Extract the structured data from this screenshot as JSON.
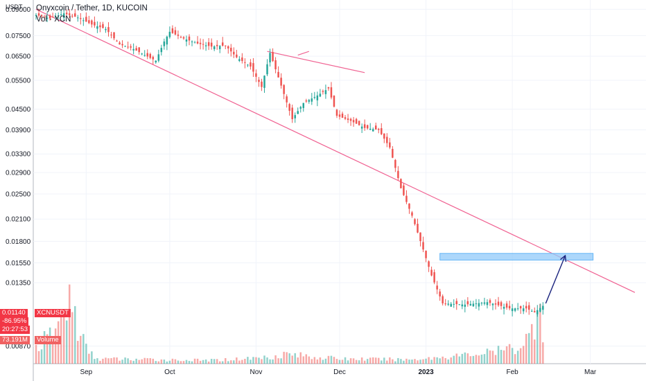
{
  "header": {
    "title": "Onyxcoin / Tether, 1D, KUCOIN",
    "volume_label": "Vol · XCN",
    "unit": "USDT"
  },
  "price_tags": {
    "last_price": "0.01140",
    "symbol": "XCNUSDT",
    "change": "-86.95%",
    "countdown": "20:27:53",
    "volume_value": "73.191M",
    "volume_word": "Volume"
  },
  "colors": {
    "up": "#26a69a",
    "down": "#ef5350",
    "trendline": "#f06292",
    "zone": "#90caf9",
    "arrow": "#1a237e",
    "tag_red": "#f23645"
  },
  "chart_data": {
    "type": "candlestick",
    "title": "Onyxcoin / Tether, 1D, KUCOIN",
    "yscale": "log",
    "ylim": [
      0.0077,
      0.096
    ],
    "y_ticks": [
      "0.09000",
      "0.07500",
      "0.06500",
      "0.05500",
      "0.04500",
      "0.03900",
      "0.03300",
      "0.02900",
      "0.02500",
      "0.02100",
      "0.01800",
      "0.01550",
      "0.01350",
      "0.00870"
    ],
    "x_ticks": [
      "Sep",
      "Oct",
      "Nov",
      "Dec",
      "2023",
      "Feb",
      "Mar"
    ],
    "x_tick_dates": [
      "2022-09-01",
      "2022-10-01",
      "2022-11-01",
      "2022-12-01",
      "2023-01-01",
      "2023-02-01",
      "2023-03-01"
    ],
    "xlim": [
      "2022-08-13",
      "2023-03-21"
    ],
    "anchor_closes": [
      [
        "2022-08-14",
        0.0865
      ],
      [
        "2022-08-19",
        0.0845
      ],
      [
        "2022-08-24",
        0.0875
      ],
      [
        "2022-08-29",
        0.085
      ],
      [
        "2022-09-03",
        0.081
      ],
      [
        "2022-09-08",
        0.0785
      ],
      [
        "2022-09-13",
        0.0705
      ],
      [
        "2022-09-17",
        0.069
      ],
      [
        "2022-09-22",
        0.0655
      ],
      [
        "2022-09-26",
        0.063
      ],
      [
        "2022-09-29",
        0.072
      ],
      [
        "2022-10-01",
        0.077
      ],
      [
        "2022-10-06",
        0.0735
      ],
      [
        "2022-10-11",
        0.071
      ],
      [
        "2022-10-16",
        0.0695
      ],
      [
        "2022-10-21",
        0.07
      ],
      [
        "2022-10-25",
        0.0645
      ],
      [
        "2022-10-30",
        0.0605
      ],
      [
        "2022-11-03",
        0.0525
      ],
      [
        "2022-11-06",
        0.0665
      ],
      [
        "2022-11-10",
        0.053
      ],
      [
        "2022-11-14",
        0.042
      ],
      [
        "2022-11-18",
        0.047
      ],
      [
        "2022-11-23",
        0.0495
      ],
      [
        "2022-11-27",
        0.052
      ],
      [
        "2022-11-30",
        0.043
      ],
      [
        "2022-12-05",
        0.0415
      ],
      [
        "2022-12-10",
        0.0395
      ],
      [
        "2022-12-15",
        0.039
      ],
      [
        "2022-12-19",
        0.0345
      ],
      [
        "2022-12-23",
        0.026
      ],
      [
        "2022-12-27",
        0.0215
      ],
      [
        "2022-12-31",
        0.017
      ],
      [
        "2023-01-03",
        0.0142
      ],
      [
        "2023-01-07",
        0.0117
      ],
      [
        "2023-01-15",
        0.0116
      ],
      [
        "2023-01-23",
        0.0118
      ],
      [
        "2023-01-31",
        0.0113
      ],
      [
        "2023-02-06",
        0.0113
      ],
      [
        "2023-02-09",
        0.011
      ],
      [
        "2023-02-12",
        0.0115
      ]
    ],
    "volume_ylim": [
      0,
      100
    ],
    "volume_anchor_values": [
      [
        "2022-08-14",
        20
      ],
      [
        "2022-08-22",
        45
      ],
      [
        "2022-08-26",
        85
      ],
      [
        "2022-08-30",
        35
      ],
      [
        "2022-09-05",
        6
      ],
      [
        "2022-10-15",
        4
      ],
      [
        "2022-11-05",
        8
      ],
      [
        "2022-11-12",
        12
      ],
      [
        "2022-12-01",
        6
      ],
      [
        "2022-12-25",
        5
      ],
      [
        "2023-01-10",
        9
      ],
      [
        "2023-01-25",
        14
      ],
      [
        "2023-02-03",
        20
      ],
      [
        "2023-02-08",
        38
      ],
      [
        "2023-02-11",
        90
      ],
      [
        "2023-02-12",
        45
      ]
    ],
    "trendlines": [
      {
        "from": [
          "2022-08-14",
          0.09
        ],
        "to": [
          "2023-03-17",
          0.01262
        ]
      },
      {
        "from": [
          "2022-11-05",
          0.0672
        ],
        "to": [
          "2022-12-10",
          0.058
        ]
      }
    ],
    "annotations": {
      "zone": {
        "from": "2023-01-06",
        "to": "2023-03-02",
        "low": 0.0158,
        "high": 0.01655
      },
      "arrow": {
        "from": [
          "2023-02-13",
          0.0117
        ],
        "to": [
          "2023-02-20",
          0.0163
        ]
      },
      "short_mark": {
        "from": [
          "2022-11-16",
          0.0655
        ],
        "to": [
          "2022-11-20",
          0.0672
        ]
      }
    }
  }
}
